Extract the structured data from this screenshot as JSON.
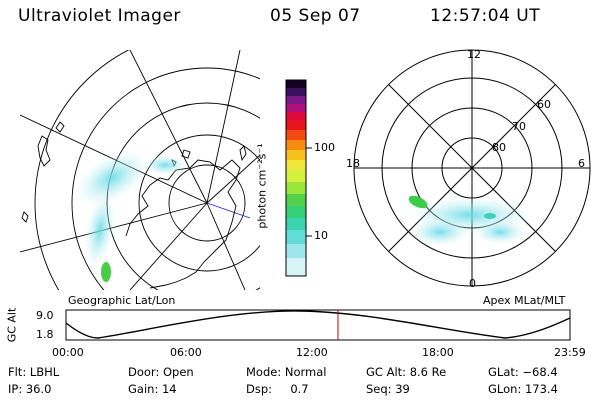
{
  "header": {
    "instrument": "Ultraviolet Imager",
    "date": "05 Sep 07",
    "time": "12:57:04 UT"
  },
  "colorbar": {
    "unit_label": "photon cm⁻²s⁻¹",
    "ticks": [
      "100",
      "10"
    ]
  },
  "geo_panel": {
    "caption": "Geographic Lat/Lon"
  },
  "polar_panel": {
    "caption": "Apex MLat/MLT",
    "mlt_labels": {
      "top": "12",
      "left": "18",
      "right": "6",
      "bottom": "0"
    },
    "lat_labels": [
      "60",
      "70",
      "80"
    ]
  },
  "altitude_plot": {
    "ylabel": "GC Alt",
    "yticks": [
      "9.0",
      "1.8"
    ],
    "xticks": [
      "00:00",
      "06:00",
      "12:00",
      "18:00",
      "23:59"
    ],
    "current_time_hours": 12.95
  },
  "info": {
    "row1": [
      {
        "label": "Flt:",
        "value": "LBHL"
      },
      {
        "label": "Door:",
        "value": "Open"
      },
      {
        "label": "Mode:",
        "value": "Normal"
      },
      {
        "label": "GC Alt:",
        "value": "8.6 Re"
      },
      {
        "label": "GLat:",
        "value": "−68.4"
      }
    ],
    "row2": [
      {
        "label": "IP:",
        "value": "36.0"
      },
      {
        "label": "Gain:",
        "value": "14"
      },
      {
        "label": "Dsp:",
        "value": "0.7"
      },
      {
        "label": "Seq:",
        "value": "39"
      },
      {
        "label": "GLon:",
        "value": "173.4"
      }
    ]
  },
  "colors": {
    "foreground": "#000000",
    "marker": "#cc0000",
    "geo_line": "#2222cc"
  }
}
